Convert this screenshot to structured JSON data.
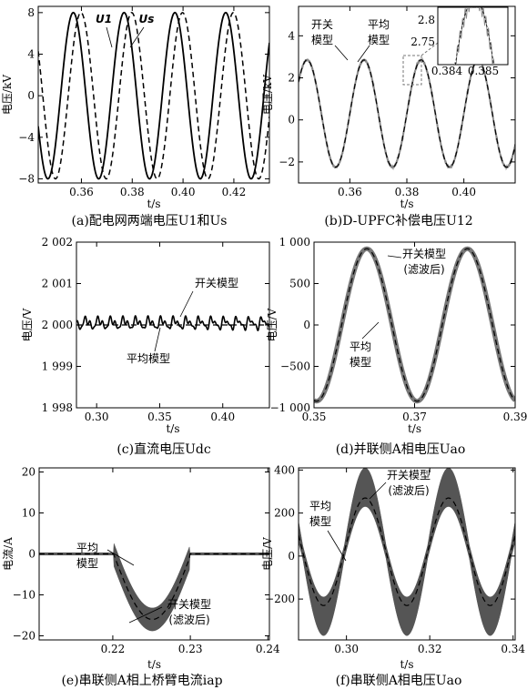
{
  "chart_data": [
    {
      "id": "a",
      "type": "line",
      "caption": "(a)配电网两端电压U1和Us",
      "xlabel": "t/s",
      "ylabel": "电压/kV",
      "xlim": [
        0.343,
        0.434
      ],
      "ylim": [
        -8.4,
        8.6
      ],
      "xticks": [
        0.36,
        0.38,
        0.4,
        0.42
      ],
      "xtick_labels": [
        "0.36",
        "0.38",
        "0.40",
        "0.42"
      ],
      "yticks": [
        -8,
        -4,
        0,
        4,
        8
      ],
      "ytick_labels": [
        "−8",
        "−4",
        "0",
        "4",
        "8"
      ],
      "series": [
        {
          "name": "U1",
          "style": "solid",
          "peaks_at": [
            0.3568,
            0.3768,
            0.3968,
            0.4168
          ],
          "amplitude": 8.0
        },
        {
          "name": "Us",
          "style": "dashed",
          "peaks_at": [
            0.3598,
            0.3798,
            0.3998,
            0.4198
          ],
          "amplitude": 8.0
        }
      ],
      "annotations": [
        "U1",
        "Us"
      ]
    },
    {
      "id": "b",
      "type": "line",
      "caption": "(b)D-UPFC补偿电压U12",
      "xlabel": "t/s",
      "ylabel": "电压/kV",
      "xlim": [
        0.342,
        0.418
      ],
      "ylim": [
        -3.0,
        5.4
      ],
      "xticks": [
        0.36,
        0.38,
        0.4
      ],
      "xtick_labels": [
        "0.36",
        "0.38",
        "0.40"
      ],
      "yticks": [
        -2,
        0,
        2,
        4
      ],
      "ytick_labels": [
        "−2",
        "0",
        "2",
        "4"
      ],
      "series": [
        {
          "name": "开关模型",
          "style": "solid-gray",
          "offset": 0.3,
          "amplitude": 2.55,
          "peaks_at": [
            0.365,
            0.385,
            0.405
          ]
        },
        {
          "name": "平均模型",
          "style": "dashed",
          "offset": 0.3,
          "amplitude": 2.55,
          "peaks_at": [
            0.365,
            0.385,
            0.405
          ]
        }
      ],
      "inset": {
        "xlim": [
          0.3836,
          0.3857
        ],
        "ylim": [
          2.72,
          2.84
        ],
        "xtick_labels": [
          "0.384",
          "0.385"
        ],
        "ytick_labels": [
          "2.8",
          "2.75"
        ]
      },
      "annotations": [
        "开关模型",
        "平均模型"
      ]
    },
    {
      "id": "c",
      "type": "line",
      "caption": "(c)直流电压Udc",
      "xlabel": "t/s",
      "ylabel": "电压/V",
      "xlim": [
        0.284,
        0.437
      ],
      "ylim": [
        1998,
        2002
      ],
      "xticks": [
        0.3,
        0.35,
        0.4
      ],
      "xtick_labels": [
        "0.30",
        "0.35",
        "0.40"
      ],
      "yticks": [
        1998,
        1999,
        2000,
        2001,
        2002
      ],
      "ytick_labels": [
        "1 998",
        "1 999",
        "2 000",
        "2 001",
        "2 002"
      ],
      "series": [
        {
          "name": "开关模型",
          "style": "solid",
          "mean": 2000.0,
          "ripple": 0.18
        },
        {
          "name": "平均模型",
          "style": "dashed",
          "mean": 2000.0
        }
      ],
      "annotations": [
        "开关模型",
        "平均模型"
      ]
    },
    {
      "id": "d",
      "type": "line",
      "caption": "(d)并联侧A相电压Uao",
      "xlabel": "t/s",
      "ylabel": "电压/V",
      "xlim": [
        0.35,
        0.39
      ],
      "ylim": [
        -1000,
        1000
      ],
      "xticks": [
        0.35,
        0.37,
        0.39
      ],
      "xtick_labels": [
        "0.35",
        "0.37",
        "0.39"
      ],
      "yticks": [
        -1000,
        -500,
        0,
        500,
        1000
      ],
      "ytick_labels": [
        "−1 000",
        "−500",
        "0",
        "500",
        "1 000"
      ],
      "series": [
        {
          "name": "开关模型(滤波后)",
          "style": "thick-gray",
          "amplitude": 920,
          "peaks_at": [
            0.3605,
            0.3805
          ]
        },
        {
          "name": "平均模型",
          "style": "dashed",
          "amplitude": 920,
          "peaks_at": [
            0.3605,
            0.3805
          ]
        }
      ],
      "annotations": [
        "开关模型",
        "(滤波后)",
        "平均",
        "模型"
      ]
    },
    {
      "id": "e",
      "type": "line",
      "caption": "(e)串联侧A相上桥臂电流iap",
      "xlabel": "t/s",
      "ylabel": "电流/A",
      "xlim": [
        0.2105,
        0.2402
      ],
      "ylim": [
        -21,
        21
      ],
      "xticks": [
        0.22,
        0.23,
        0.24
      ],
      "xtick_labels": [
        "0.22",
        "0.23",
        "0.24"
      ],
      "yticks": [
        -20,
        -10,
        0,
        10,
        20
      ],
      "ytick_labels": [
        "−20",
        "−10",
        "0",
        "10",
        "20"
      ],
      "series": [
        {
          "name": "开关模型(滤波后)",
          "style": "band-gray",
          "min": -16,
          "max": 16
        },
        {
          "name": "平均模型",
          "style": "dashed",
          "min": -16,
          "max": 16
        }
      ],
      "annotations": [
        "平均",
        "模型",
        "开关模型",
        "(滤波后)"
      ]
    },
    {
      "id": "f",
      "type": "line",
      "caption": "(f)串联侧A相电压Uao",
      "xlabel": "t/s",
      "ylabel": "电压/V",
      "xlim": [
        0.2885,
        0.3405
      ],
      "ylim": [
        -390,
        410
      ],
      "xticks": [
        0.3,
        0.32,
        0.34
      ],
      "xtick_labels": [
        "0.30",
        "0.32",
        "0.34"
      ],
      "yticks": [
        -200,
        0,
        200,
        400
      ],
      "ytick_labels": [
        "−200",
        "0",
        "200",
        "400"
      ],
      "series": [
        {
          "name": "开关模型(滤波后)",
          "style": "band-gray",
          "amplitude": 300
        },
        {
          "name": "平均模型",
          "style": "dashed",
          "amplitude": 250
        }
      ],
      "annotations": [
        "开关模型",
        "(滤波后)",
        "平均",
        "模型"
      ]
    }
  ]
}
